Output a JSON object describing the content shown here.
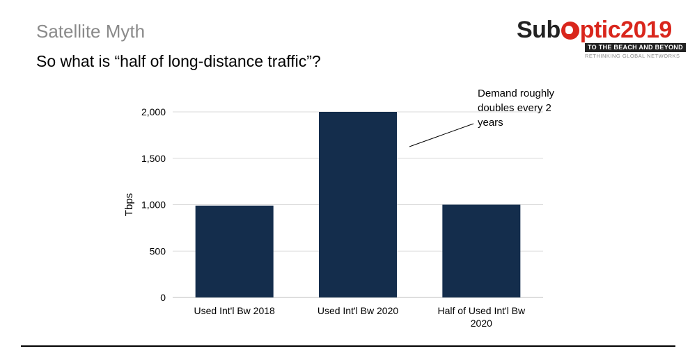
{
  "slide": {
    "section_title": "Satellite Myth",
    "headline": "So what is “half of long-distance traffic”?"
  },
  "logo": {
    "part_sub": "Sub",
    "part_ptic": "ptic",
    "part_year": "2019",
    "tagline": "TO THE BEACH AND BEYOND",
    "subtagline": "RETHINKING GLOBAL NETWORKS",
    "colors": {
      "red": "#d9261c",
      "dark": "#222222"
    }
  },
  "chart_data": {
    "type": "bar",
    "categories": [
      [
        "Used Int'l Bw 2018"
      ],
      [
        "Used Int'l Bw 2020"
      ],
      [
        "Half of Used Int'l Bw",
        "2020"
      ]
    ],
    "values": [
      990,
      2000,
      1000
    ],
    "ylabel": "Tbps",
    "ylim": [
      0,
      2000
    ],
    "yticks": [
      0,
      500,
      1000,
      1500,
      2000
    ],
    "ytick_labels": [
      "0",
      "500",
      "1,000",
      "1,500",
      "2,000"
    ],
    "grid": true,
    "bar_color": "#142d4c",
    "annotation": {
      "lines": [
        "Demand roughly",
        "doubles every 2",
        "years"
      ],
      "points_to": "Used Int'l Bw 2020"
    }
  }
}
